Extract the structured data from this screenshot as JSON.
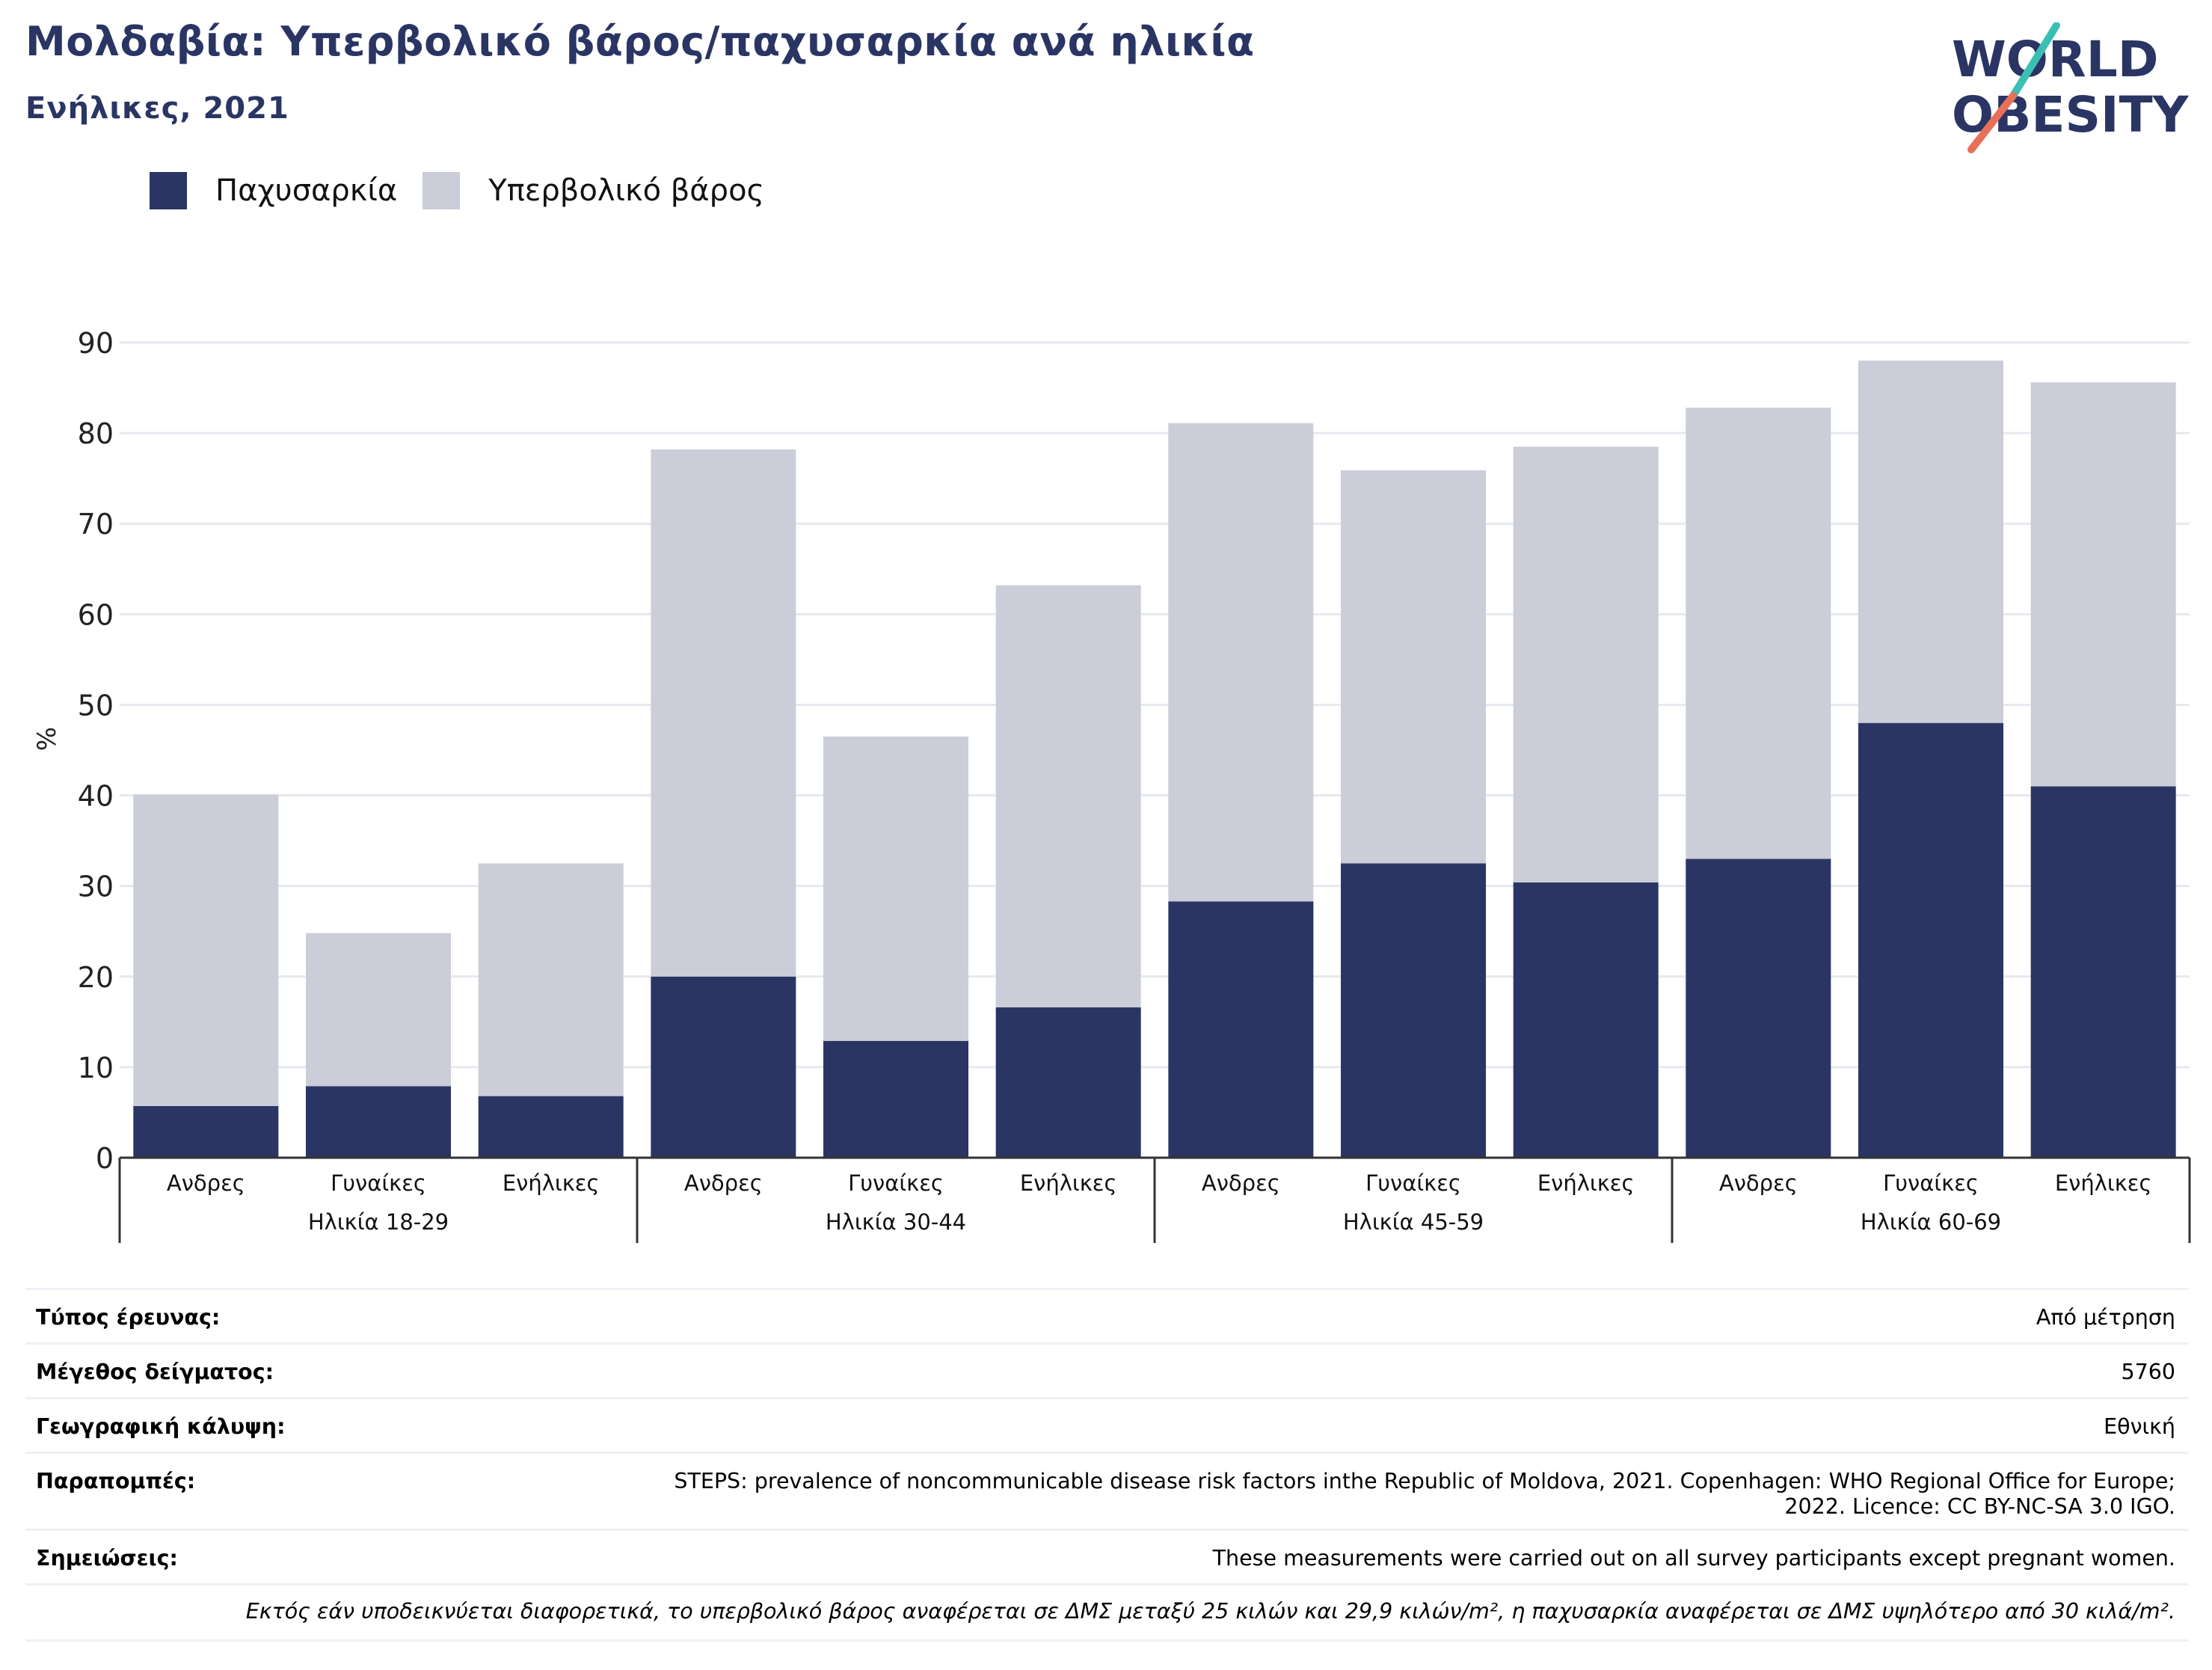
{
  "header": {
    "title": "Μολδαβία: Υπερβολικό βάρος/παχυσαρκία ανά ηλικία",
    "subtitle": "Ενήλικες, 2021"
  },
  "logo": {
    "line1": "WORLD",
    "line2": "OBESITY",
    "colors": {
      "text": "#2a3564",
      "stroke_top": "#3bbfb4",
      "stroke_bottom": "#e8705a"
    }
  },
  "colors": {
    "obesity": "#2a3564",
    "overweight": "#cbcdd8",
    "grid": "#e8e9ef",
    "axis": "#333333"
  },
  "legend": [
    {
      "label": "Παχυσαρκία",
      "color": "#2a3564"
    },
    {
      "label": "Υπερβολικό βάρος",
      "color": "#cbcdd8"
    }
  ],
  "chart_data": {
    "type": "bar",
    "stacked": true,
    "ylabel": "%",
    "ylim": [
      0,
      90
    ],
    "yticks": [
      0,
      10,
      20,
      30,
      40,
      50,
      60,
      70,
      80,
      90
    ],
    "grid": true,
    "legend_position": "top-left",
    "groups": [
      {
        "label": "Ηλικία 18-29",
        "categories": [
          "Ανδρες",
          "Γυναίκες",
          "Ενήλικες"
        ]
      },
      {
        "label": "Ηλικία 30-44",
        "categories": [
          "Ανδρες",
          "Γυναίκες",
          "Ενήλικες"
        ]
      },
      {
        "label": "Ηλικία 45-59",
        "categories": [
          "Ανδρες",
          "Γυναίκες",
          "Ενήλικες"
        ]
      },
      {
        "label": "Ηλικία 60-69",
        "categories": [
          "Ανδρες",
          "Γυναίκες",
          "Ενήλικες"
        ]
      }
    ],
    "series": [
      {
        "name": "Παχυσαρκία",
        "values": [
          5.7,
          7.9,
          6.8,
          20.0,
          12.9,
          16.6,
          28.3,
          32.5,
          30.4,
          33.0,
          48.0,
          41.0
        ]
      },
      {
        "name": "Υπερβολικό βάρος",
        "values": [
          34.4,
          16.9,
          25.7,
          58.2,
          33.6,
          46.6,
          52.8,
          43.4,
          48.1,
          49.8,
          40.0,
          44.6
        ]
      }
    ]
  },
  "info": {
    "rows": [
      {
        "key": "Τύπος έρευνας:",
        "value": "Από μέτρηση"
      },
      {
        "key": "Μέγεθος δείγματος:",
        "value": "5760"
      },
      {
        "key": "Γεωγραφική κάλυψη:",
        "value": "Εθνική"
      },
      {
        "key": "Παραπομπές:",
        "value": "STEPS: prevalence of noncommunicable disease risk factors inthe Republic of Moldova, 2021. Copenhagen: WHO Regional Office for Europe;",
        "value2": "2022. Licence: CC BY-NC-SA 3.0 IGO."
      },
      {
        "key": "Σημειώσεις:",
        "value": "These measurements were carried out on all survey participants except pregnant women."
      }
    ],
    "footnote": "Εκτός εάν υποδεικνύεται διαφορετικά, το υπερβολικό βάρος αναφέρεται σε ΔΜΣ μεταξύ 25 κιλών και 29,9 κιλών/m², η παχυσαρκία αναφέρεται σε ΔΜΣ υψηλότερο από 30 κιλά/m²."
  }
}
